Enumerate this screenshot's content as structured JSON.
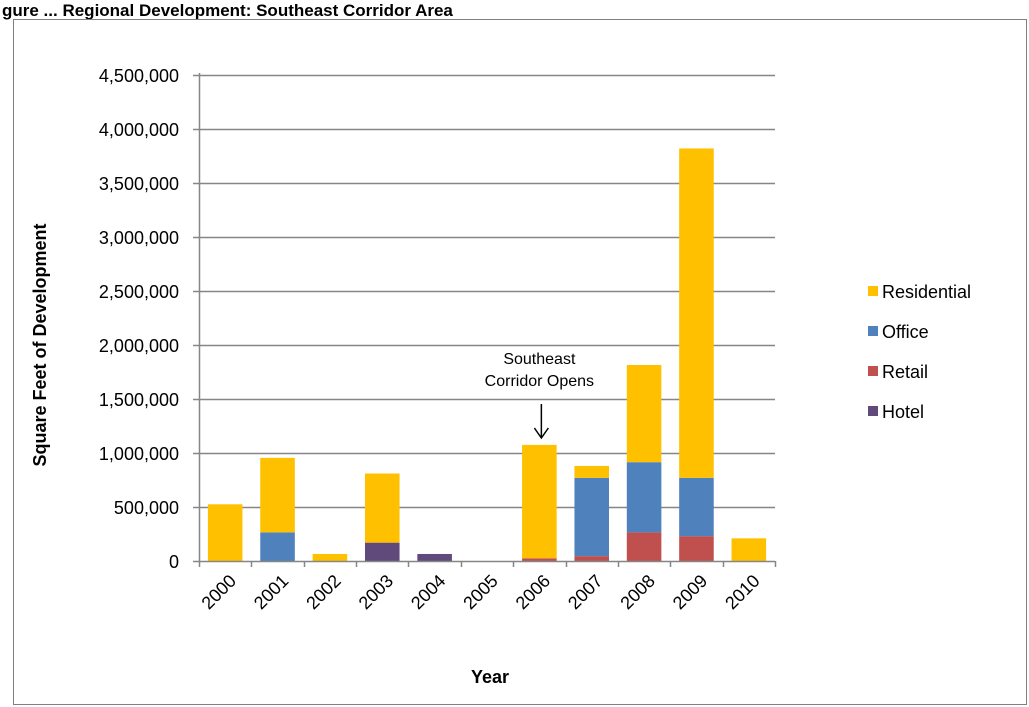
{
  "header_text": "gure ... Regional Development: Southeast Corridor Area",
  "chart_data": {
    "type": "bar",
    "stacked": true,
    "categories": [
      "2000",
      "2001",
      "2002",
      "2003",
      "2004",
      "2005",
      "2006",
      "2007",
      "2008",
      "2009",
      "2010"
    ],
    "series": [
      {
        "name": "Hotel",
        "color": "#604a7b",
        "values": [
          0,
          0,
          0,
          170000,
          65000,
          0,
          0,
          0,
          0,
          0,
          0
        ]
      },
      {
        "name": "Retail",
        "color": "#c0504d",
        "values": [
          0,
          0,
          0,
          0,
          0,
          0,
          25000,
          45000,
          265000,
          230000,
          0
        ]
      },
      {
        "name": "Office",
        "color": "#4f81bd",
        "values": [
          0,
          265000,
          0,
          0,
          0,
          0,
          0,
          725000,
          650000,
          540000,
          0
        ]
      },
      {
        "name": "Residential",
        "color": "#ffc000",
        "values": [
          525000,
          690000,
          65000,
          640000,
          0,
          0,
          1050000,
          110000,
          900000,
          3050000,
          210000
        ]
      }
    ],
    "legend_order": [
      "Residential",
      "Office",
      "Retail",
      "Hotel"
    ],
    "legend_position": "right",
    "xlabel": "Year",
    "ylabel": "Square Feet of Development",
    "ylim": [
      0,
      4500000
    ],
    "y_ticks": [
      0,
      500000,
      1000000,
      1500000,
      2000000,
      2500000,
      3000000,
      3500000,
      4000000,
      4500000
    ],
    "y_tick_labels": [
      "0",
      "500,000",
      "1,000,000",
      "1,500,000",
      "2,000,000",
      "2,500,000",
      "3,000,000",
      "3,500,000",
      "4,000,000",
      "4,500,000"
    ],
    "grid": true,
    "annotation": {
      "lines": [
        "Southeast",
        "Corridor Opens"
      ],
      "category": "2006"
    }
  }
}
